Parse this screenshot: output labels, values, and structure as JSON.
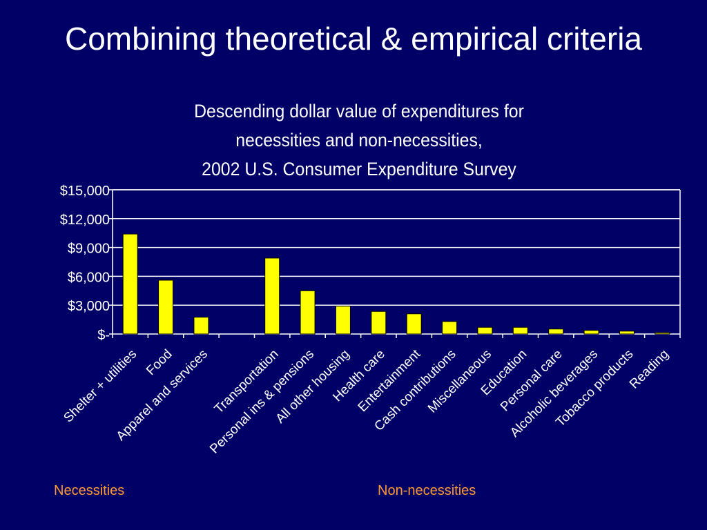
{
  "slide": {
    "title": "Combining theoretical & empirical criteria"
  },
  "chart_data": {
    "type": "bar",
    "title_lines": [
      "Descending dollar value of expenditures for",
      "necessities and non-necessities,",
      "2002 U.S. Consumer Expenditure Survey"
    ],
    "categories": [
      "Shelter + utilities",
      "Food",
      "Apparel and services",
      "",
      "Transportation",
      "Personal ins & pensions",
      "All other housing",
      "Health care",
      "Entertainment",
      "Cash contributions",
      "Miscellaneous",
      "Education",
      "Personal care",
      "Alcoholic beverages",
      "Tobacco products",
      "Reading"
    ],
    "values": [
      10400,
      5600,
      1750,
      null,
      7900,
      4500,
      2900,
      2350,
      2100,
      1300,
      700,
      700,
      520,
      380,
      300,
      140
    ],
    "ylim": [
      0,
      15000
    ],
    "yticks": [
      0,
      3000,
      6000,
      9000,
      12000,
      15000
    ],
    "ytick_labels": [
      "$-",
      "$3,000",
      "$6,000",
      "$9,000",
      "$12,000",
      "$15,000"
    ],
    "grid": true,
    "bar_color": "#ffff00",
    "groups": [
      {
        "label": "Necessities",
        "color": "#ff9933"
      },
      {
        "label": "Non-necessities",
        "color": "#ff9933"
      }
    ]
  }
}
